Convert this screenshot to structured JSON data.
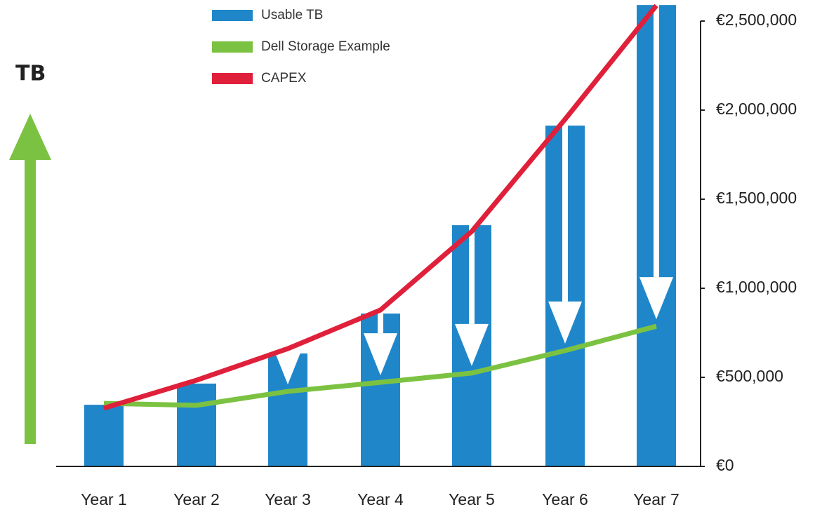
{
  "chart_data": {
    "type": "bar_line",
    "y_axis_label": "TB",
    "categories": [
      "Year 1",
      "Year 2",
      "Year 3",
      "Year 4",
      "Year 5",
      "Year 6",
      "Year 7"
    ],
    "series": [
      {
        "name": "Usable TB",
        "color": "#1f87c9",
        "kind": "bar",
        "values": [
          346000,
          465000,
          634000,
          858000,
          1354000,
          1913000,
          2590000
        ]
      },
      {
        "name": "Dell Storage Example",
        "color": "#7cc242",
        "kind": "line",
        "values": [
          354000,
          343000,
          421000,
          472000,
          524000,
          650000,
          787000
        ]
      },
      {
        "name": "CAPEX",
        "color": "#e0203a",
        "kind": "line",
        "values": [
          327000,
          484000,
          661000,
          878000,
          1319000,
          1949000,
          2587000
        ]
      }
    ],
    "ylim": [
      0,
      2500000
    ],
    "yticks": [
      {
        "value": 0,
        "label": "€0"
      },
      {
        "value": 500000,
        "label": "€500,000"
      },
      {
        "value": 1000000,
        "label": "€1,000,000"
      },
      {
        "value": 1500000,
        "label": "€1,500,000"
      },
      {
        "value": 2000000,
        "label": "€2,000,000"
      },
      {
        "value": 2500000,
        "label": "€2,500,000"
      }
    ]
  }
}
